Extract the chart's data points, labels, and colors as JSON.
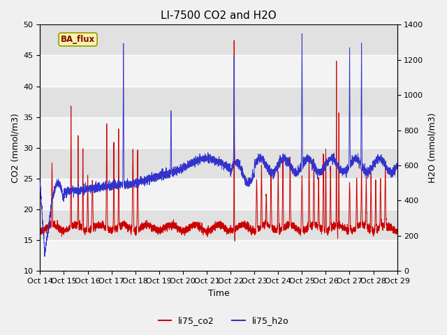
{
  "title": "LI-7500 CO2 and H2O",
  "xlabel": "Time",
  "ylabel_left": "CO2 (mmol/m3)",
  "ylabel_right": "H2O (mmol/m3)",
  "x_tick_labels": [
    "Oct 14",
    "Oct 15",
    "Oct 16",
    "Oct 17",
    "Oct 18",
    "Oct 19",
    "Oct 20",
    "Oct 21",
    "Oct 22",
    "Oct 23",
    "Oct 24",
    "Oct 25",
    "Oct 26",
    "Oct 27",
    "Oct 28",
    "Oct 29"
  ],
  "ylim_left": [
    10,
    50
  ],
  "ylim_right": [
    0,
    1400
  ],
  "yticks_left": [
    10,
    15,
    20,
    25,
    30,
    35,
    40,
    45,
    50
  ],
  "yticks_right": [
    0,
    200,
    400,
    600,
    800,
    1000,
    1200,
    1400
  ],
  "legend_labels": [
    "li75_co2",
    "li75_h2o"
  ],
  "co2_color": "#cc0000",
  "h2o_color": "#3333cc",
  "annotation_text": "BA_flux",
  "fig_bg": "#f0f0f0",
  "plot_bg": "#e8e8e8",
  "band_light": "#dcdcdc",
  "title_fontsize": 11,
  "axis_label_fontsize": 9,
  "tick_label_fontsize": 8
}
